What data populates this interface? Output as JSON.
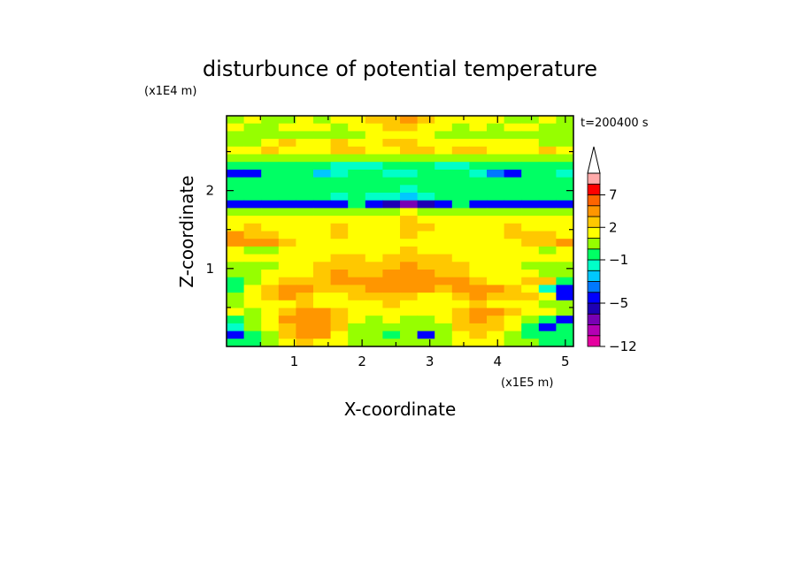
{
  "chart_data": {
    "type": "heatmap",
    "title": "disturbunce of potential temperature",
    "time_label": "t=200400 s",
    "xlabel": "X-coordinate",
    "ylabel": "Z-coordinate",
    "x_unit": "(x1E5 m)",
    "y_unit": "(x1E4 m)",
    "xlim": [
      0,
      5.12
    ],
    "ylim": [
      0,
      2.96
    ],
    "x_ticks": [
      1,
      2,
      3,
      4,
      5
    ],
    "y_ticks": [
      1,
      2
    ],
    "colorbar": {
      "labels": [
        {
          "value": 7,
          "text": "7"
        },
        {
          "value": 2,
          "text": "2"
        },
        {
          "value": -1,
          "text": "−1"
        },
        {
          "value": -5,
          "text": "−5"
        },
        {
          "value": -12,
          "text": "−12"
        }
      ],
      "levels": [
        -12,
        -10,
        -8,
        -6,
        -5,
        -4,
        -3,
        -2,
        -1,
        0,
        1,
        2,
        3,
        5,
        7,
        9,
        11
      ],
      "colors": [
        "#e600a0",
        "#b400b4",
        "#7800b4",
        "#1e00b4",
        "#0000ff",
        "#0078ff",
        "#00c8ff",
        "#00ffc8",
        "#00ff64",
        "#96ff00",
        "#ffff00",
        "#ffc800",
        "#ff9600",
        "#ff6400",
        "#ff0000",
        "#ffaaaa"
      ],
      "extend": "max"
    },
    "field": [
      [
        0.6,
        1.2,
        0.8,
        0.6,
        1.0,
        0.9,
        1.1,
        1.4,
        2.0,
        2.6,
        3.0,
        2.2,
        1.4,
        1.0,
        1.6,
        1.2,
        0.8,
        0.9,
        1.0,
        0.5
      ],
      [
        1.4,
        0.8,
        0.9,
        1.1,
        1.6,
        1.2,
        0.7,
        1.0,
        1.6,
        2.2,
        2.4,
        1.8,
        1.2,
        0.9,
        1.0,
        0.8,
        1.1,
        1.2,
        0.6,
        0.8
      ],
      [
        0.4,
        0.2,
        0.6,
        0.4,
        0.2,
        0.5,
        0.8,
        0.6,
        1.0,
        1.4,
        1.6,
        1.2,
        0.7,
        0.5,
        0.3,
        0.6,
        0.4,
        0.2,
        0.5,
        0.3
      ],
      [
        0.2,
        0.8,
        1.6,
        2.0,
        1.4,
        1.8,
        2.2,
        1.6,
        1.4,
        2.0,
        2.4,
        1.6,
        1.0,
        1.2,
        1.6,
        1.0,
        1.4,
        1.2,
        0.8,
        0.4
      ],
      [
        1.0,
        1.6,
        2.2,
        1.8,
        1.2,
        1.4,
        2.0,
        2.4,
        1.8,
        1.6,
        2.2,
        2.0,
        1.6,
        2.2,
        2.4,
        1.8,
        1.2,
        1.6,
        2.0,
        1.4
      ],
      [
        0.2,
        0.4,
        0.8,
        0.6,
        0.3,
        0.2,
        0.5,
        0.6,
        0.4,
        0.6,
        0.8,
        0.5,
        0.3,
        0.6,
        0.8,
        0.4,
        0.2,
        0.4,
        0.6,
        0.3
      ],
      [
        -0.8,
        -0.6,
        -0.9,
        -0.7,
        -0.6,
        -0.8,
        -1.2,
        -1.6,
        -1.4,
        -0.8,
        -0.6,
        -1.0,
        -1.4,
        -1.2,
        -0.8,
        -0.6,
        -0.9,
        -0.7,
        -0.6,
        -0.8
      ],
      [
        -4.5,
        -4.2,
        -1.0,
        -0.6,
        -0.8,
        -2.5,
        -1.2,
        -1.0,
        -0.6,
        -1.2,
        -1.4,
        -0.8,
        -0.6,
        -0.9,
        -1.2,
        -4.0,
        -4.2,
        -1.0,
        -0.8,
        -1.6
      ],
      [
        -1.0,
        -0.8,
        -0.6,
        -0.7,
        -0.9,
        -0.6,
        -0.8,
        -0.7,
        -1.0,
        -0.6,
        -0.5,
        -0.8,
        -0.9,
        -0.6,
        -0.7,
        -0.8,
        -0.6,
        -0.7,
        -0.9,
        -0.8
      ],
      [
        -0.6,
        -0.8,
        -0.5,
        -0.6,
        -0.4,
        -0.7,
        -0.9,
        -0.6,
        -0.5,
        -1.0,
        -1.2,
        -0.8,
        -0.6,
        -0.5,
        -0.6,
        -0.7,
        -0.5,
        -0.6,
        -0.8,
        -0.6
      ],
      [
        -0.7,
        -1.0,
        -0.8,
        -0.6,
        -0.7,
        -0.9,
        -1.1,
        -0.8,
        -1.2,
        -2.0,
        -2.4,
        -1.6,
        -1.0,
        -0.8,
        -0.7,
        -0.9,
        -1.0,
        -0.8,
        -0.9,
        -0.7
      ],
      [
        -4.8,
        -5.0,
        -4.6,
        -4.4,
        -4.7,
        -4.9,
        -5.0,
        -0.8,
        -4.6,
        -6.0,
        -6.4,
        -5.8,
        -4.8,
        -0.9,
        -4.4,
        -4.6,
        -4.8,
        -4.7,
        -4.5,
        -4.6
      ],
      [
        0.6,
        0.8,
        0.5,
        0.4,
        0.6,
        0.7,
        0.8,
        0.6,
        0.5,
        0.8,
        1.0,
        0.7,
        0.5,
        0.6,
        0.8,
        0.7,
        0.6,
        0.5,
        0.6,
        0.8
      ],
      [
        1.4,
        1.6,
        1.8,
        1.6,
        1.2,
        1.4,
        1.6,
        1.8,
        1.4,
        1.8,
        2.0,
        1.6,
        1.4,
        1.2,
        1.4,
        1.6,
        1.8,
        1.6,
        1.4,
        1.2
      ],
      [
        1.8,
        2.0,
        1.6,
        1.4,
        1.6,
        1.8,
        2.2,
        1.8,
        1.6,
        1.8,
        2.4,
        2.0,
        1.6,
        1.4,
        1.6,
        1.8,
        2.0,
        1.8,
        1.6,
        1.4
      ],
      [
        3.2,
        2.6,
        2.0,
        1.8,
        1.6,
        1.8,
        2.0,
        1.8,
        1.6,
        1.8,
        2.2,
        1.8,
        1.6,
        1.4,
        1.6,
        1.8,
        2.0,
        2.4,
        2.2,
        1.8
      ],
      [
        3.0,
        3.2,
        3.4,
        2.8,
        1.8,
        1.4,
        1.6,
        1.4,
        1.2,
        1.6,
        1.8,
        1.6,
        1.4,
        1.6,
        1.2,
        1.0,
        1.4,
        2.2,
        2.6,
        3.4
      ],
      [
        1.0,
        0.6,
        0.8,
        1.2,
        1.6,
        1.4,
        1.2,
        1.0,
        1.4,
        1.8,
        2.0,
        1.6,
        1.4,
        1.2,
        1.6,
        1.4,
        1.2,
        1.0,
        0.8,
        1.0
      ],
      [
        1.8,
        1.6,
        1.2,
        1.4,
        1.6,
        1.8,
        2.0,
        2.2,
        1.8,
        2.2,
        2.4,
        2.6,
        2.2,
        1.8,
        1.6,
        1.4,
        1.2,
        1.4,
        1.6,
        1.4
      ],
      [
        0.4,
        0.6,
        0.8,
        1.0,
        1.4,
        2.0,
        2.6,
        2.2,
        2.4,
        2.8,
        3.0,
        2.6,
        2.2,
        2.0,
        1.6,
        1.2,
        1.0,
        0.8,
        0.6,
        0.5
      ],
      [
        0.2,
        0.4,
        1.0,
        1.4,
        1.8,
        2.4,
        3.0,
        2.6,
        2.2,
        3.2,
        3.6,
        3.0,
        2.4,
        2.0,
        1.8,
        1.4,
        1.2,
        1.0,
        0.6,
        0.4
      ],
      [
        -0.4,
        0.6,
        1.6,
        2.2,
        2.4,
        2.2,
        3.0,
        3.4,
        3.6,
        3.4,
        3.2,
        3.6,
        3.8,
        3.2,
        2.4,
        1.8,
        1.6,
        2.2,
        2.0,
        -0.8
      ],
      [
        -0.6,
        1.2,
        2.4,
        3.2,
        3.6,
        2.8,
        2.2,
        2.6,
        3.4,
        3.8,
        3.6,
        3.0,
        2.6,
        3.2,
        3.6,
        3.0,
        2.6,
        1.8,
        -1.4,
        -5.0
      ],
      [
        0.2,
        1.8,
        2.6,
        3.0,
        2.4,
        1.8,
        1.6,
        2.0,
        2.4,
        2.2,
        2.0,
        1.8,
        1.6,
        2.4,
        3.0,
        2.8,
        2.4,
        2.0,
        1.6,
        -4.6
      ],
      [
        0.6,
        1.4,
        1.6,
        1.8,
        2.0,
        1.6,
        1.2,
        1.4,
        1.6,
        2.0,
        1.8,
        1.4,
        1.2,
        1.6,
        2.0,
        1.8,
        1.6,
        1.2,
        0.8,
        0.6
      ],
      [
        1.2,
        0.8,
        1.4,
        2.6,
        3.4,
        3.6,
        2.8,
        1.6,
        1.2,
        1.8,
        1.4,
        1.0,
        1.6,
        2.8,
        3.4,
        3.2,
        2.4,
        1.6,
        1.0,
        0.8
      ],
      [
        -0.6,
        0.4,
        1.6,
        3.2,
        3.8,
        3.6,
        2.6,
        1.2,
        0.6,
        1.0,
        0.8,
        0.4,
        1.2,
        2.6,
        3.2,
        2.6,
        1.4,
        0.6,
        -0.6,
        -4.2
      ],
      [
        -1.2,
        0.2,
        1.2,
        2.8,
        3.6,
        3.4,
        2.2,
        0.8,
        0.4,
        0.6,
        0.4,
        0.2,
        0.8,
        2.2,
        2.8,
        2.2,
        1.0,
        -0.4,
        -4.2,
        -0.8
      ],
      [
        -4.6,
        -0.6,
        0.8,
        2.2,
        3.2,
        3.0,
        1.6,
        0.6,
        0.2,
        -0.4,
        0.4,
        -4.4,
        0.6,
        1.6,
        2.4,
        1.6,
        0.6,
        -0.6,
        -0.8,
        -0.4
      ],
      [
        -0.8,
        -0.2,
        0.6,
        1.4,
        2.0,
        1.8,
        1.0,
        0.4,
        0.2,
        0.6,
        0.8,
        0.4,
        0.6,
        1.0,
        1.4,
        1.0,
        0.6,
        0.2,
        -0.6,
        -0.4
      ]
    ]
  }
}
